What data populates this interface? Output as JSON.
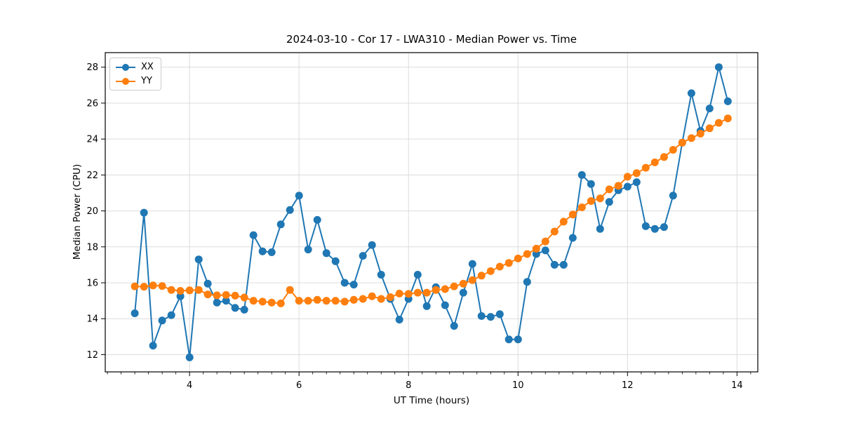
{
  "chart_data": {
    "type": "line",
    "title": "2024-03-10 - Cor 17 - LWA310 - Median Power vs. Time",
    "xlabel": "UT Time (hours)",
    "ylabel": "Median Power (CPU)",
    "legend_position": "upper left",
    "grid": true,
    "grid_color": "#dcdcdc",
    "axis_color": "#000000",
    "background": "#ffffff",
    "xlim": [
      2.46,
      14.38
    ],
    "ylim": [
      11.04,
      28.81
    ],
    "xticks": [
      4,
      6,
      8,
      10,
      12,
      14
    ],
    "yticks": [
      12,
      14,
      16,
      18,
      20,
      22,
      24,
      26,
      28
    ],
    "x_minor_step": 0.25,
    "x": [
      3.0,
      3.167,
      3.333,
      3.5,
      3.667,
      3.833,
      4.0,
      4.167,
      4.333,
      4.5,
      4.667,
      4.833,
      5.0,
      5.167,
      5.333,
      5.5,
      5.667,
      5.833,
      6.0,
      6.167,
      6.333,
      6.5,
      6.667,
      6.833,
      7.0,
      7.167,
      7.333,
      7.5,
      7.667,
      7.833,
      8.0,
      8.167,
      8.333,
      8.5,
      8.667,
      8.833,
      9.0,
      9.167,
      9.333,
      9.5,
      9.667,
      9.833,
      10.0,
      10.167,
      10.333,
      10.5,
      10.667,
      10.833,
      11.0,
      11.167,
      11.333,
      11.5,
      11.667,
      11.833,
      12.0,
      12.167,
      12.333,
      12.5,
      12.667,
      12.833,
      13.0,
      13.167,
      13.333,
      13.5,
      13.667,
      13.833
    ],
    "series": [
      {
        "name": "XX",
        "color": "#1f77b4",
        "values": [
          14.3,
          19.9,
          12.5,
          13.9,
          14.2,
          15.25,
          11.85,
          17.3,
          15.95,
          14.9,
          15.0,
          14.6,
          14.5,
          18.65,
          17.75,
          17.7,
          19.25,
          20.05,
          20.85,
          17.85,
          19.5,
          17.65,
          17.2,
          16.0,
          15.9,
          17.5,
          18.1,
          16.45,
          15.1,
          13.95,
          15.1,
          16.45,
          14.7,
          15.75,
          14.75,
          13.6,
          15.45,
          17.05,
          14.15,
          14.1,
          14.25,
          12.85,
          12.85,
          16.05,
          17.6,
          17.8,
          17.0,
          17.0,
          18.5,
          22.0,
          21.5,
          19.0,
          20.5,
          21.15,
          21.35,
          21.6,
          19.15,
          19.0,
          19.1,
          20.85,
          23.8,
          26.55,
          24.45,
          25.7,
          28.0,
          26.1
        ]
      },
      {
        "name": "YY",
        "color": "#ff7f0e",
        "values": [
          15.8,
          15.78,
          15.85,
          15.82,
          15.6,
          15.55,
          15.58,
          15.6,
          15.35,
          15.3,
          15.32,
          15.28,
          15.18,
          15.0,
          14.95,
          14.9,
          14.85,
          15.6,
          15.0,
          15.0,
          15.05,
          15.0,
          15.0,
          14.95,
          15.05,
          15.1,
          15.25,
          15.1,
          15.2,
          15.4,
          15.38,
          15.45,
          15.45,
          15.6,
          15.65,
          15.8,
          15.95,
          16.15,
          16.4,
          16.65,
          16.9,
          17.1,
          17.35,
          17.6,
          17.9,
          18.3,
          18.85,
          19.4,
          19.8,
          20.2,
          20.55,
          20.7,
          21.2,
          21.4,
          21.9,
          22.1,
          22.4,
          22.7,
          23.0,
          23.4,
          23.8,
          24.05,
          24.3,
          24.6,
          24.9,
          25.15
        ]
      }
    ]
  }
}
